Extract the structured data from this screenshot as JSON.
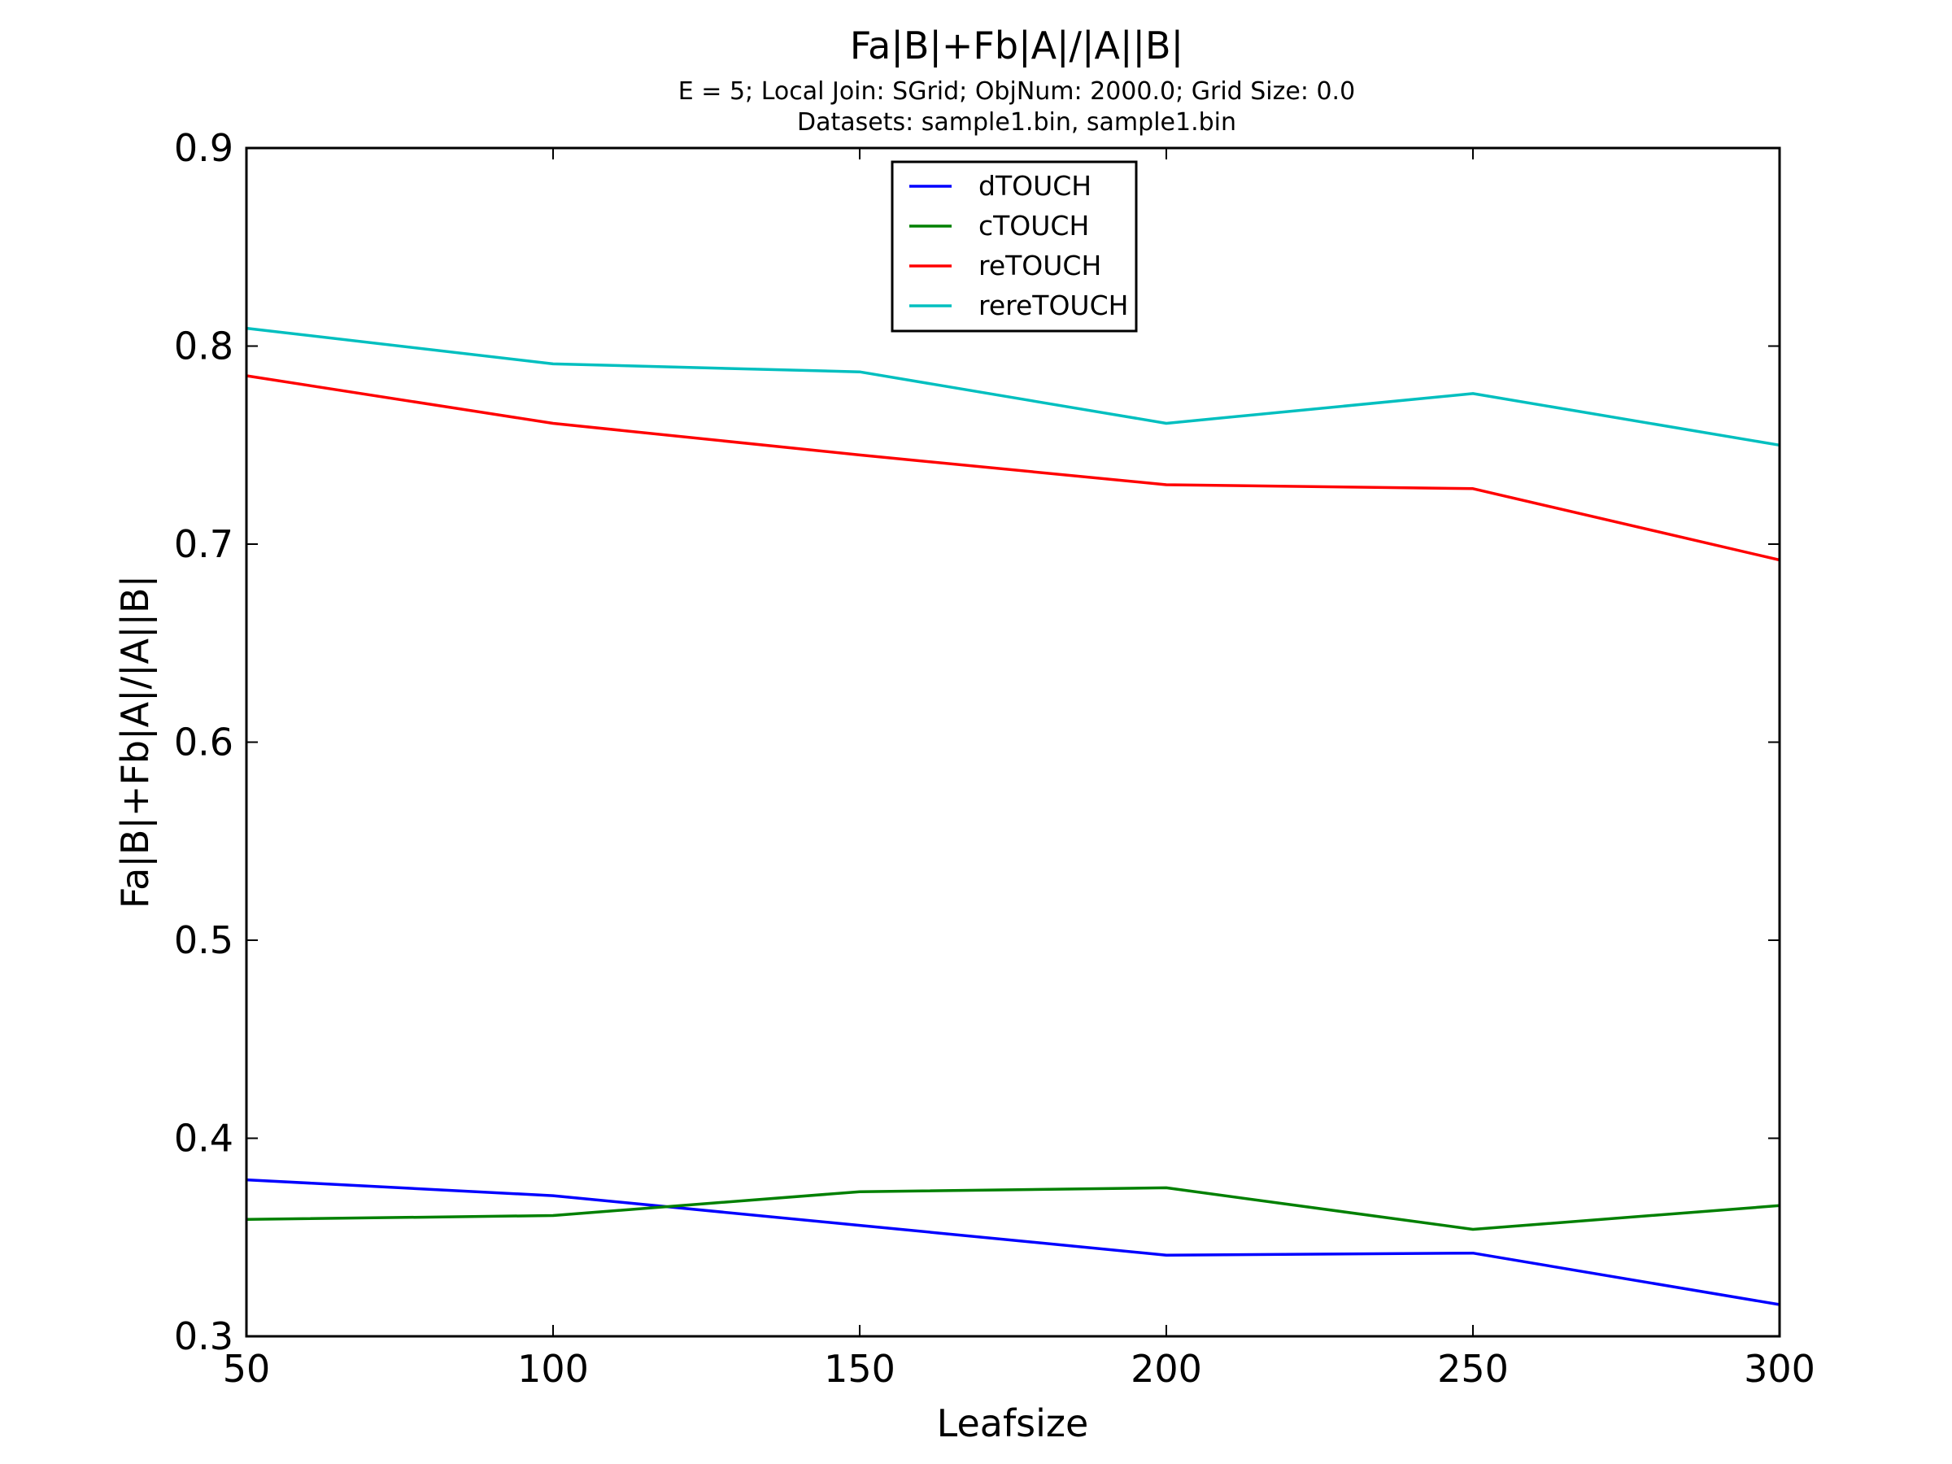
{
  "chart_data": {
    "type": "line",
    "title": "Fa|B|+Fb|A|/|A||B|",
    "subtitle_lines": [
      "E = 5; Local Join: SGrid; ObjNum: 2000.0; Grid Size: 0.0",
      "Datasets: sample1.bin, sample1.bin"
    ],
    "xlabel": "Leafsize",
    "ylabel": "Fa|B|+Fb|A|/|A||B|",
    "xlim": [
      50,
      300
    ],
    "ylim": [
      0.3,
      0.9
    ],
    "xticks": [
      50,
      100,
      150,
      200,
      250,
      300
    ],
    "xtick_labels": [
      "50",
      "100",
      "150",
      "200",
      "250",
      "300"
    ],
    "yticks": [
      0.3,
      0.4,
      0.5,
      0.6,
      0.7,
      0.8,
      0.9
    ],
    "ytick_labels": [
      "0.3",
      "0.4",
      "0.5",
      "0.6",
      "0.7",
      "0.8",
      "0.9"
    ],
    "grid": false,
    "legend_position": "top-center",
    "x": [
      50,
      100,
      150,
      200,
      250,
      300
    ],
    "series": [
      {
        "name": "dTOUCH",
        "color": "#0000ff",
        "values": [
          0.379,
          0.371,
          0.356,
          0.341,
          0.342,
          0.316
        ]
      },
      {
        "name": "cTOUCH",
        "color": "#008000",
        "values": [
          0.359,
          0.361,
          0.373,
          0.375,
          0.354,
          0.366
        ]
      },
      {
        "name": "reTOUCH",
        "color": "#ff0000",
        "values": [
          0.785,
          0.761,
          0.745,
          0.73,
          0.728,
          0.692
        ]
      },
      {
        "name": "rereTOUCH",
        "color": "#00bfbf",
        "values": [
          0.809,
          0.791,
          0.787,
          0.761,
          0.776,
          0.75
        ]
      }
    ]
  }
}
